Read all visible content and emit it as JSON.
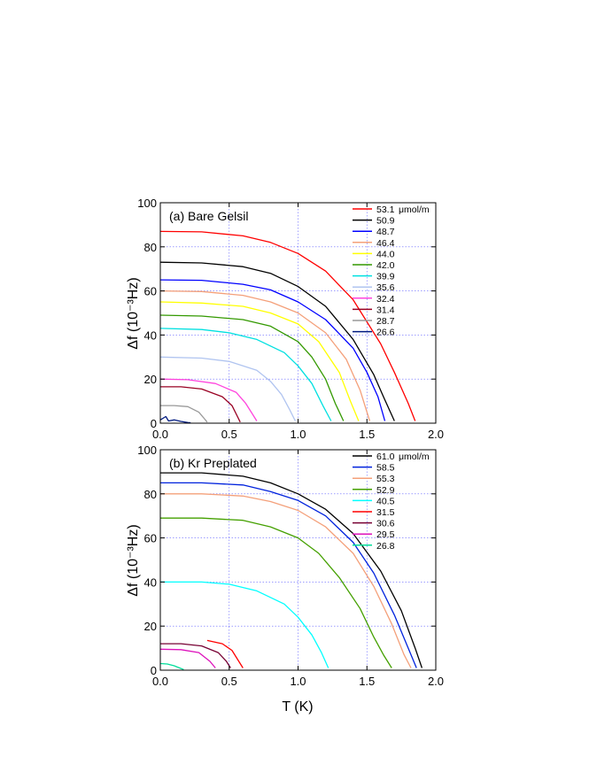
{
  "chart_data": [
    {
      "type": "line",
      "title": "(a) Bare Gelsil",
      "xlabel": "T (K)",
      "ylabel": "Δf (10⁻³Hz)",
      "xlim": [
        0.0,
        2.0
      ],
      "ylim": [
        0,
        100
      ],
      "xticks": [
        "0.0",
        "0.5",
        "1.0",
        "1.5",
        "2.0"
      ],
      "yticks": [
        "0",
        "20",
        "40",
        "60",
        "80",
        "100"
      ],
      "grid": true,
      "legend_unit": "μmol/m",
      "series": [
        {
          "name": "53.1",
          "color": "#ff0000",
          "x": [
            0.0,
            0.3,
            0.6,
            0.8,
            1.0,
            1.2,
            1.4,
            1.6,
            1.7,
            1.8,
            1.85
          ],
          "y": [
            87,
            86.8,
            85,
            82,
            77,
            69,
            56,
            36,
            23,
            9,
            1
          ]
        },
        {
          "name": "50.9",
          "color": "#000000",
          "x": [
            0.0,
            0.3,
            0.6,
            0.8,
            1.0,
            1.2,
            1.4,
            1.55,
            1.62,
            1.7
          ],
          "y": [
            73,
            72.7,
            71,
            68,
            62,
            53,
            38,
            22,
            12,
            1
          ]
        },
        {
          "name": "48.7",
          "color": "#0000ff",
          "x": [
            0.0,
            0.3,
            0.6,
            0.8,
            1.0,
            1.2,
            1.4,
            1.5,
            1.58,
            1.63
          ],
          "y": [
            65,
            64.8,
            63,
            60.5,
            55,
            47,
            34,
            23,
            12,
            1
          ]
        },
        {
          "name": "46.4",
          "color": "#f4a07a",
          "x": [
            0.0,
            0.3,
            0.6,
            0.8,
            1.0,
            1.2,
            1.35,
            1.45,
            1.52
          ],
          "y": [
            60,
            59.7,
            58,
            55,
            50,
            41,
            29,
            15,
            1
          ]
        },
        {
          "name": "44.0",
          "color": "#ffff00",
          "x": [
            0.0,
            0.3,
            0.6,
            0.8,
            1.0,
            1.15,
            1.3,
            1.38,
            1.44
          ],
          "y": [
            55,
            54.5,
            53,
            50,
            45,
            37,
            23,
            10,
            1
          ]
        },
        {
          "name": "42.0",
          "color": "#339900",
          "x": [
            0.0,
            0.3,
            0.6,
            0.8,
            1.0,
            1.1,
            1.2,
            1.27,
            1.33
          ],
          "y": [
            49,
            48.6,
            47,
            44,
            37,
            30,
            20,
            9,
            1
          ]
        },
        {
          "name": "39.9",
          "color": "#00e0e0",
          "x": [
            0.0,
            0.3,
            0.5,
            0.7,
            0.9,
            1.0,
            1.1,
            1.18,
            1.24
          ],
          "y": [
            43,
            42.5,
            41,
            38,
            32,
            26,
            18,
            8,
            1
          ]
        },
        {
          "name": "35.6",
          "color": "#b0c4f0",
          "x": [
            0.0,
            0.3,
            0.5,
            0.7,
            0.8,
            0.88,
            0.94,
            0.98
          ],
          "y": [
            30,
            29.5,
            28,
            24,
            19,
            13,
            6,
            1
          ]
        },
        {
          "name": "32.4",
          "color": "#ff44dd",
          "x": [
            0.0,
            0.2,
            0.4,
            0.55,
            0.62,
            0.67,
            0.7
          ],
          "y": [
            20,
            19.7,
            18,
            14,
            9,
            4,
            1
          ]
        },
        {
          "name": "31.4",
          "color": "#990022",
          "x": [
            0.0,
            0.15,
            0.3,
            0.45,
            0.52,
            0.56,
            0.58
          ],
          "y": [
            16.5,
            16.5,
            15.5,
            12,
            8,
            3,
            0.5
          ]
        },
        {
          "name": "28.7",
          "color": "#999999",
          "x": [
            0.0,
            0.1,
            0.2,
            0.28,
            0.32,
            0.34
          ],
          "y": [
            8,
            8,
            7.5,
            5,
            2,
            0.5
          ]
        },
        {
          "name": "26.6",
          "color": "#001a80",
          "x": [
            0.0,
            0.04,
            0.06,
            0.1,
            0.15,
            0.2,
            0.22
          ],
          "y": [
            1.5,
            3,
            1,
            1.5,
            0.8,
            0.3,
            0.2
          ]
        }
      ]
    },
    {
      "type": "line",
      "title": "(b) Kr Preplated",
      "xlabel": "T (K)",
      "ylabel": "Δf (10⁻³Hz)",
      "xlim": [
        0.0,
        2.0
      ],
      "ylim": [
        0,
        100
      ],
      "xticks": [
        "0.0",
        "0.5",
        "1.0",
        "1.5",
        "2.0"
      ],
      "yticks": [
        "0",
        "20",
        "40",
        "60",
        "80",
        "100"
      ],
      "grid": true,
      "legend_unit": "μmol/m",
      "series": [
        {
          "name": "61.0",
          "color": "#000000",
          "x": [
            0.0,
            0.3,
            0.6,
            0.8,
            1.0,
            1.2,
            1.4,
            1.6,
            1.75,
            1.85,
            1.9
          ],
          "y": [
            89.5,
            89.5,
            88,
            85,
            80,
            73,
            62,
            45,
            27,
            10,
            1
          ]
        },
        {
          "name": "58.5",
          "color": "#0022dd",
          "x": [
            0.0,
            0.3,
            0.6,
            0.8,
            1.0,
            1.2,
            1.4,
            1.55,
            1.7,
            1.8,
            1.86
          ],
          "y": [
            85,
            85,
            84,
            81,
            77,
            70,
            58,
            44,
            25,
            10,
            1
          ]
        },
        {
          "name": "55.3",
          "color": "#f4a07a",
          "x": [
            0.0,
            0.3,
            0.6,
            0.8,
            1.0,
            1.2,
            1.4,
            1.55,
            1.68,
            1.77,
            1.82
          ],
          "y": [
            80,
            80,
            79,
            76.5,
            72.5,
            65,
            53,
            38,
            21,
            7,
            1
          ]
        },
        {
          "name": "52.9",
          "color": "#44a000",
          "x": [
            0.0,
            0.3,
            0.6,
            0.8,
            1.0,
            1.15,
            1.3,
            1.45,
            1.55,
            1.62,
            1.68
          ],
          "y": [
            69,
            69,
            68,
            65,
            60,
            53,
            42,
            28,
            15,
            7,
            1
          ]
        },
        {
          "name": "40.5",
          "color": "#00ffff",
          "x": [
            0.0,
            0.3,
            0.5,
            0.7,
            0.9,
            1.0,
            1.1,
            1.17,
            1.22
          ],
          "y": [
            40,
            40,
            39,
            36,
            30,
            24,
            16,
            8,
            1
          ]
        },
        {
          "name": "31.5",
          "color": "#ff0000",
          "x": [
            0.34,
            0.45,
            0.52,
            0.57,
            0.6
          ],
          "y": [
            13.5,
            12,
            9,
            4,
            1
          ]
        },
        {
          "name": "30.6",
          "color": "#770033",
          "x": [
            0.0,
            0.15,
            0.3,
            0.42,
            0.48,
            0.51
          ],
          "y": [
            12,
            12,
            11,
            8,
            4,
            1
          ]
        },
        {
          "name": "29.5",
          "color": "#dd11bb",
          "x": [
            0.0,
            0.15,
            0.28,
            0.36,
            0.4
          ],
          "y": [
            9.5,
            9.3,
            8,
            4,
            1
          ]
        },
        {
          "name": "26.8",
          "color": "#00dd99",
          "x": [
            0.0,
            0.05,
            0.1,
            0.14,
            0.17
          ],
          "y": [
            3,
            2.8,
            2,
            1,
            0.3
          ]
        }
      ]
    }
  ]
}
